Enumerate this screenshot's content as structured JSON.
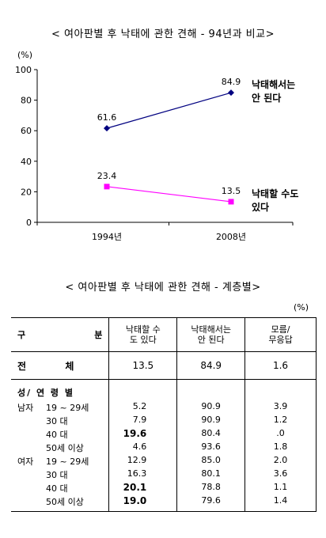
{
  "title1": "< 여아판별 후 낙태에 관한 견해 - 94년과 비교>",
  "chart_data": {
    "type": "line",
    "unit": "(%)",
    "categories": [
      "1994년",
      "2008년"
    ],
    "ylim": [
      0,
      100
    ],
    "yticks": [
      "0",
      "20",
      "40",
      "60",
      "80",
      "100"
    ],
    "series": [
      {
        "name": "낙태해서는 안 된다",
        "name_lines": [
          "낙태해서는",
          "안 된다"
        ],
        "values": [
          61.6,
          84.9
        ],
        "labels": [
          "61.6",
          "84.9"
        ],
        "color": "#000080",
        "marker": "diamond"
      },
      {
        "name": "낙태할 수도 있다",
        "name_lines": [
          "낙태할 수도",
          "있다"
        ],
        "values": [
          23.4,
          13.5
        ],
        "labels": [
          "23.4",
          "13.5"
        ],
        "color": "#FF00FF",
        "marker": "square"
      }
    ]
  },
  "title2": "< 여아판별 후 낙태에 관한 견해 - 계층별>",
  "table_unit": "(%)",
  "table": {
    "header": {
      "gubun_a": "구",
      "gubun_b": "분",
      "col1": "낙태할 수도 있다",
      "col2": "낙태해서는 안 된다",
      "col3": "모름/ 무응답"
    },
    "total": {
      "label_a": "전",
      "label_b": "체",
      "v1": "13.5",
      "v2": "84.9",
      "v3": "1.6"
    },
    "section": "성/ 연 령 별",
    "rows": [
      {
        "sex": "남자",
        "age": "19 ~ 29세",
        "v1": "5.2",
        "v2": "90.9",
        "v3": "3.9"
      },
      {
        "sex": "",
        "age": "30 대",
        "v1": "7.9",
        "v2": "90.9",
        "v3": "1.2"
      },
      {
        "sex": "",
        "age": "40 대",
        "v1": "19.6",
        "v2": "80.4",
        "v3": ".0"
      },
      {
        "sex": "",
        "age": "50세 이상",
        "v1": "4.6",
        "v2": "93.6",
        "v3": "1.8"
      },
      {
        "sex": "여자",
        "age": "19 ~ 29세",
        "v1": "12.9",
        "v2": "85.0",
        "v3": "2.0"
      },
      {
        "sex": "",
        "age": "30 대",
        "v1": "16.3",
        "v2": "80.1",
        "v3": "3.6"
      },
      {
        "sex": "",
        "age": "40 대",
        "v1": "20.1",
        "v2": "78.8",
        "v3": "1.1"
      },
      {
        "sex": "",
        "age": "50세 이상",
        "v1": "19.0",
        "v2": "79.6",
        "v3": "1.4"
      }
    ]
  }
}
